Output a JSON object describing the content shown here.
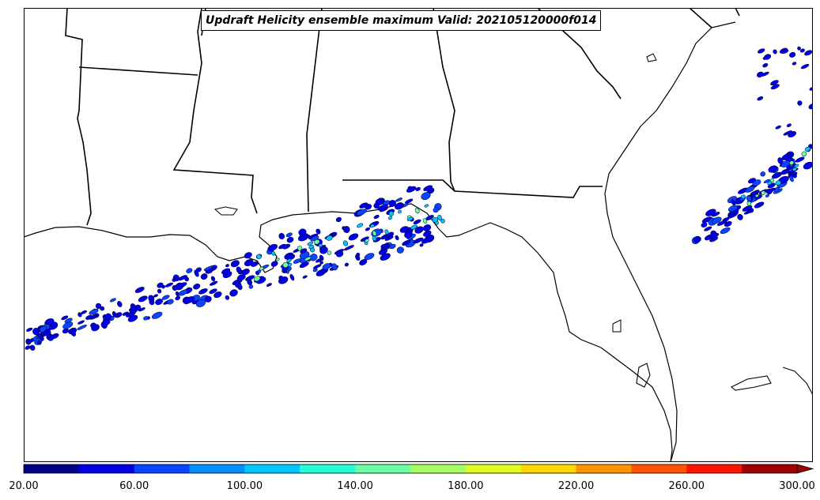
{
  "title": "Updraft Helicity ensemble maximum Valid: 202105120000f014",
  "colorbar": {
    "colors": [
      "#00008c",
      "#0000e6",
      "#0a44ff",
      "#0090ff",
      "#00c8ff",
      "#24ffd8",
      "#6cffa0",
      "#a8ff60",
      "#e0ff20",
      "#ffd800",
      "#ff9400",
      "#ff5400",
      "#ff1400",
      "#a00000"
    ],
    "extend": "max",
    "ticks": [
      "20.00",
      "60.00",
      "100.00",
      "140.00",
      "180.00",
      "220.00",
      "260.00",
      "300.00"
    ]
  },
  "map": {
    "region": "Southeastern United States and Gulf of Mexico",
    "field": "Updraft Helicity ensemble maximum"
  }
}
